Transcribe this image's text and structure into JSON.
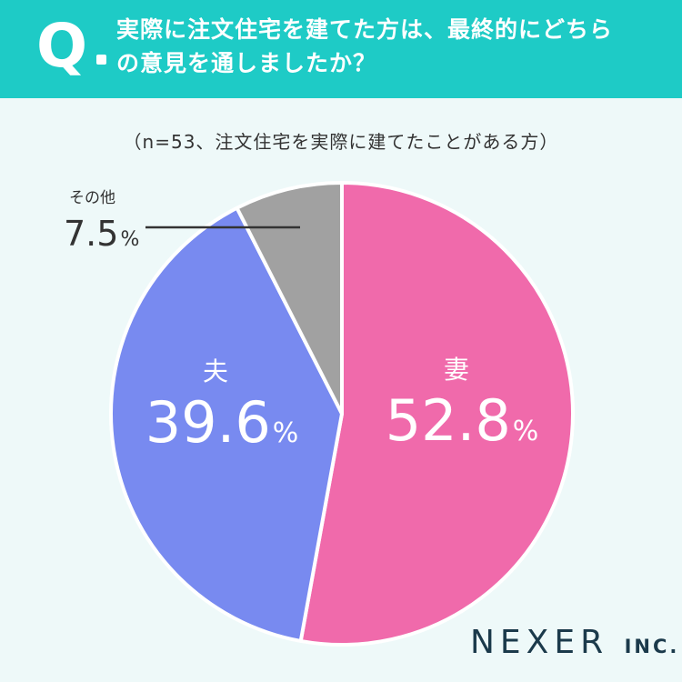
{
  "header": {
    "q_mark": "Q",
    "question_line1": "実際に注文住宅を建てた方は、最終的にどちら",
    "question_line2": "の意見を通しましたか？"
  },
  "note": "（n=53、注文住宅を実際に建てたことがある方）",
  "brand": {
    "name": "NEXER",
    "suffix": "INC."
  },
  "colors": {
    "header_bg": "#1ecbc6",
    "background": "#eef9f9",
    "wife": "#f06aab",
    "husband": "#788af0",
    "other": "#a1a1a1"
  },
  "chart_data": {
    "type": "pie",
    "start_angle_deg": 0,
    "direction": "clockwise",
    "slices": [
      {
        "label": "妻",
        "value": 52.8,
        "display": "52.8",
        "unit": "%",
        "color": "#f06aab"
      },
      {
        "label": "夫",
        "value": 39.6,
        "display": "39.6",
        "unit": "%",
        "color": "#788af0"
      },
      {
        "label": "その他",
        "value": 7.5,
        "display": "7.5",
        "unit": "%",
        "color": "#a1a1a1"
      }
    ]
  }
}
